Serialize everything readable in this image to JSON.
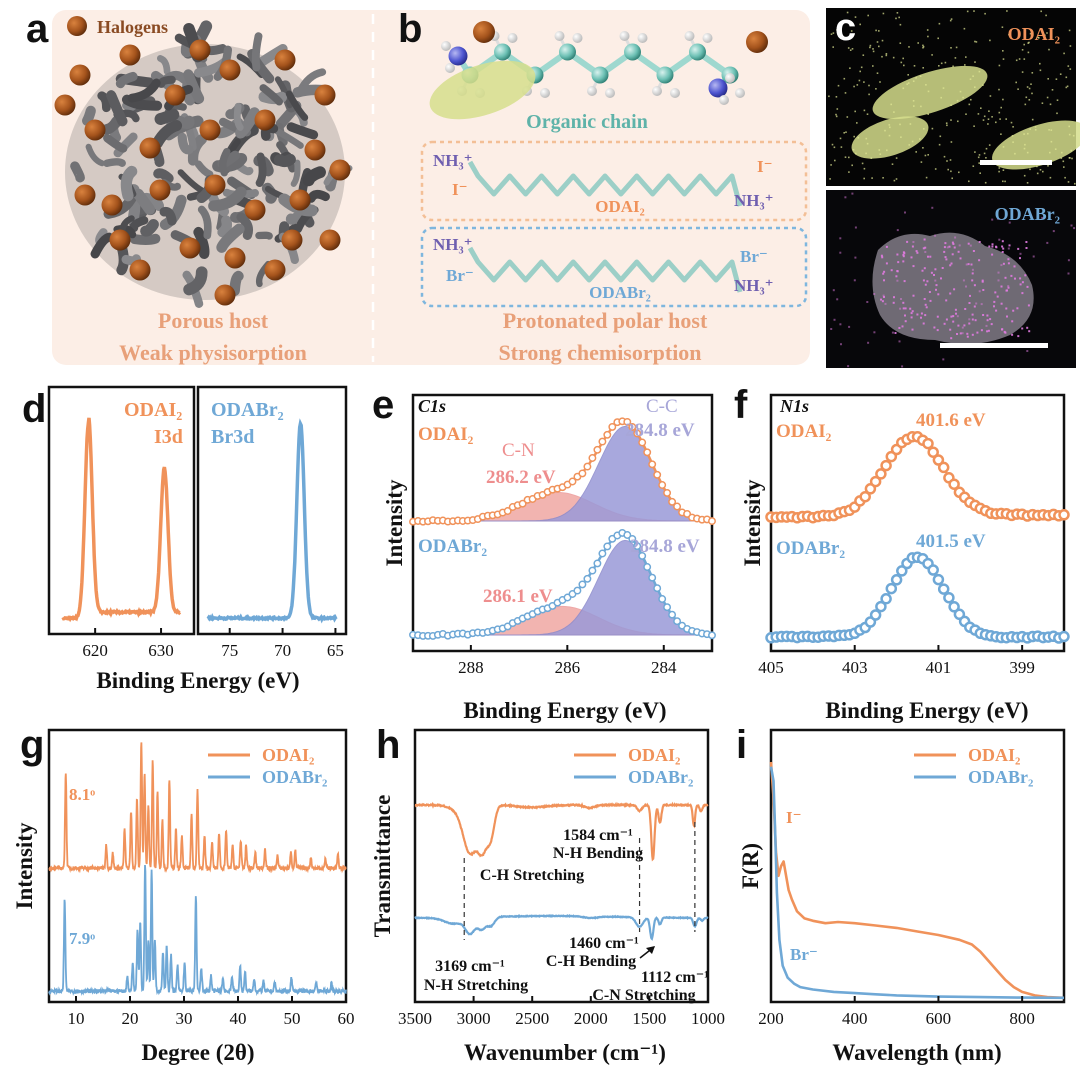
{
  "colors": {
    "orange": "#F0925A",
    "blue": "#6FA8D6",
    "purple": "#9A99D8",
    "pink": "#EE8E8E",
    "header_bg": "#FCEEE6",
    "chain_teal": "#5FB3A9",
    "text_orange": "#E8A079",
    "text_brown": "#8A4B23",
    "text_purple": "#6F5FB0"
  },
  "panel_labels": [
    "a",
    "b",
    "c",
    "d",
    "e",
    "f",
    "g",
    "h",
    "i"
  ],
  "panel_a": {
    "legend": "Halogens",
    "caption_line1": "Porous host",
    "caption_line2": "Weak physisorption"
  },
  "panel_b": {
    "organic_chain": "Organic chain",
    "box1": {
      "left_top": "NH₃⁺",
      "left_bottom": "I⁻",
      "center": "ODAI₂",
      "right_top": "I⁻",
      "right_bottom": "NH₃⁺"
    },
    "box2": {
      "left_top": "NH₃⁺",
      "left_bottom": "Br⁻",
      "center": "ODABr₂",
      "right_top": "Br⁻",
      "right_bottom": "NH₃⁺"
    },
    "caption_line1": "Protonated polar host",
    "caption_line2": "Strong chemisorption"
  },
  "panel_c": {
    "top_label": "ODAI₂",
    "bottom_label": "ODABr₂"
  },
  "chart_data": [
    {
      "panel": "d",
      "type": "line",
      "xlabel": "Binding Energy (eV)",
      "subplots": [
        {
          "name": "ODAI₂",
          "line2": "I3d",
          "color": "#F0925A",
          "xlim": [
            613,
            635
          ],
          "reversed": false,
          "ticks": [
            620,
            630
          ],
          "peaks": [
            {
              "x": 619.0,
              "h": 1.0,
              "w": 0.55
            },
            {
              "x": 630.5,
              "h": 0.74,
              "w": 0.55
            }
          ]
        },
        {
          "name": "ODABr₂",
          "line2": "Br3d",
          "color": "#6FA8D6",
          "xlim": [
            64,
            78
          ],
          "reversed": true,
          "ticks": [
            75,
            70,
            65
          ],
          "peaks": [
            {
              "x": 68.3,
              "h": 1.0,
              "w": 0.55
            }
          ]
        }
      ]
    },
    {
      "panel": "e",
      "type": "line",
      "header": "C1s",
      "xlabel": "Binding Energy (eV)",
      "ylabel": "Intensity",
      "xlim": [
        289.2,
        283.0
      ],
      "xticks": [
        288,
        286,
        284
      ],
      "series": [
        {
          "name": "ODAI₂",
          "color": "#F0925A",
          "components": [
            {
              "label": "C-N",
              "x": 286.2,
              "value_label": "286.2 eV",
              "h": 0.26,
              "w": 0.75
            },
            {
              "label": "C-C",
              "x": 284.8,
              "value_label": "284.8 eV",
              "h": 0.86,
              "w": 0.55
            }
          ]
        },
        {
          "name": "ODABr₂",
          "color": "#6FA8D6",
          "components": [
            {
              "label": "",
              "x": 286.1,
              "value_label": "286.1 eV",
              "h": 0.26,
              "w": 0.75
            },
            {
              "label": "",
              "x": 284.8,
              "value_label": "284.8 eV",
              "h": 0.86,
              "w": 0.55
            }
          ]
        }
      ]
    },
    {
      "panel": "f",
      "type": "line",
      "header": "N1s",
      "xlabel": "Binding Energy (eV)",
      "ylabel": "Intensity",
      "xlim": [
        405,
        398
      ],
      "xticks": [
        405,
        403,
        401,
        399
      ],
      "series": [
        {
          "name": "ODAI₂",
          "color": "#F0925A",
          "peak": 401.6,
          "value_label": "401.6 eV",
          "h": 0.95,
          "w": 0.7
        },
        {
          "name": "ODABr₂",
          "color": "#6FA8D6",
          "peak": 401.5,
          "value_label": "401.5 eV",
          "h": 0.95,
          "w": 0.62
        }
      ]
    },
    {
      "panel": "g",
      "type": "line",
      "xlabel": "Degree (2θ)",
      "ylabel": "Intensity",
      "xlim": [
        5,
        60
      ],
      "xticks": [
        10,
        20,
        30,
        40,
        50,
        60
      ],
      "xticklabels": [
        "10",
        "20",
        "30",
        "40",
        "50",
        "60"
      ],
      "series": [
        {
          "name": "ODAI₂",
          "color": "#F0925A",
          "annotation": "8.1ᵒ",
          "peaks": [
            [
              8.1,
              0.75
            ],
            [
              15.6,
              0.18
            ],
            [
              16.8,
              0.12
            ],
            [
              19.0,
              0.3
            ],
            [
              20.2,
              0.45
            ],
            [
              21.3,
              0.55
            ],
            [
              22.1,
              1.0
            ],
            [
              22.7,
              0.75
            ],
            [
              23.4,
              0.5
            ],
            [
              24.2,
              0.85
            ],
            [
              25.1,
              0.6
            ],
            [
              26.0,
              0.38
            ],
            [
              27.3,
              0.7
            ],
            [
              28.5,
              0.3
            ],
            [
              29.6,
              0.25
            ],
            [
              31.4,
              0.42
            ],
            [
              32.5,
              0.62
            ],
            [
              33.8,
              0.25
            ],
            [
              35.2,
              0.2
            ],
            [
              36.5,
              0.28
            ],
            [
              37.8,
              0.3
            ],
            [
              39.0,
              0.18
            ],
            [
              40.5,
              0.22
            ],
            [
              41.5,
              0.18
            ],
            [
              43.2,
              0.12
            ],
            [
              45.0,
              0.15
            ],
            [
              47.3,
              0.1
            ],
            [
              49.8,
              0.12
            ],
            [
              50.6,
              0.14
            ],
            [
              53.5,
              0.08
            ],
            [
              56.2,
              0.07
            ],
            [
              58.5,
              0.1
            ]
          ]
        },
        {
          "name": "ODABr₂",
          "color": "#6FA8D6",
          "annotation": "7.9ᵒ",
          "peaks": [
            [
              7.9,
              0.72
            ],
            [
              19.5,
              0.12
            ],
            [
              20.5,
              0.22
            ],
            [
              21.4,
              0.48
            ],
            [
              21.9,
              0.55
            ],
            [
              22.8,
              1.0
            ],
            [
              23.4,
              0.4
            ],
            [
              24.0,
              0.95
            ],
            [
              24.6,
              0.4
            ],
            [
              26.1,
              0.3
            ],
            [
              26.8,
              0.36
            ],
            [
              27.6,
              0.28
            ],
            [
              28.8,
              0.2
            ],
            [
              30.1,
              0.22
            ],
            [
              32.2,
              0.75
            ],
            [
              33.2,
              0.18
            ],
            [
              35.0,
              0.12
            ],
            [
              37.2,
              0.1
            ],
            [
              38.9,
              0.12
            ],
            [
              40.4,
              0.2
            ],
            [
              41.3,
              0.15
            ],
            [
              43.0,
              0.1
            ],
            [
              44.7,
              0.08
            ],
            [
              46.8,
              0.07
            ],
            [
              49.9,
              0.11
            ],
            [
              54.5,
              0.07
            ],
            [
              57.3,
              0.06
            ]
          ]
        }
      ]
    },
    {
      "panel": "h",
      "type": "line",
      "xlabel": "Wavenumber (cm⁻¹)",
      "ylabel": "Transmittance",
      "xlim": [
        3500,
        1000
      ],
      "xticks": [
        3500,
        3000,
        2500,
        2000,
        1500,
        1000
      ],
      "series": [
        {
          "name": "ODAI₂",
          "color": "#F0925A",
          "dips": [
            [
              3169,
              0.05,
              60
            ],
            [
              3030,
              0.8,
              60
            ],
            [
              2920,
              0.65,
              40
            ],
            [
              2850,
              0.45,
              30
            ],
            [
              2500,
              0.04,
              120
            ],
            [
              2010,
              0.05,
              40
            ],
            [
              1584,
              0.1,
              20
            ],
            [
              1470,
              0.9,
              14
            ],
            [
              1410,
              0.3,
              12
            ],
            [
              1120,
              0.35,
              10
            ],
            [
              1060,
              0.1,
              12
            ]
          ]
        },
        {
          "name": "ODABr₂",
          "color": "#6FA8D6",
          "dips": [
            [
              3169,
              0.18,
              80
            ],
            [
              3030,
              0.45,
              40
            ],
            [
              2930,
              0.35,
              35
            ],
            [
              2850,
              0.25,
              30
            ],
            [
              2000,
              0.05,
              60
            ],
            [
              1584,
              0.28,
              30
            ],
            [
              1480,
              0.62,
              14
            ],
            [
              1410,
              0.2,
              12
            ],
            [
              1112,
              0.25,
              14
            ],
            [
              1050,
              0.08,
              12
            ]
          ]
        }
      ],
      "annotations": [
        {
          "text_line1": "C-H Stretching",
          "text_line2": ""
        },
        {
          "text_line1": "1584 cm⁻¹",
          "text_line2": "N-H Bending"
        },
        {
          "text_line1": "3169 cm⁻¹",
          "text_line2": "N-H Stretching"
        },
        {
          "text_line1": "1460 cm⁻¹",
          "text_line2": "C-H Bending"
        },
        {
          "text_line1": "1112 cm⁻¹",
          "text_line2": "C-N Stretching"
        }
      ]
    },
    {
      "panel": "i",
      "type": "line",
      "xlabel": "Wavelength (nm)",
      "ylabel": "F(R)",
      "xlim": [
        200,
        900
      ],
      "xticks": [
        200,
        400,
        600,
        800
      ],
      "series": [
        {
          "name": "ODAI₂",
          "color": "#F0925A",
          "annotation": "I⁻",
          "points": [
            [
              200,
              1.0
            ],
            [
              206,
              0.85
            ],
            [
              212,
              0.62
            ],
            [
              218,
              0.52
            ],
            [
              224,
              0.56
            ],
            [
              230,
              0.58
            ],
            [
              236,
              0.52
            ],
            [
              242,
              0.46
            ],
            [
              250,
              0.42
            ],
            [
              262,
              0.37
            ],
            [
              280,
              0.34
            ],
            [
              300,
              0.33
            ],
            [
              330,
              0.32
            ],
            [
              360,
              0.325
            ],
            [
              400,
              0.32
            ],
            [
              450,
              0.31
            ],
            [
              500,
              0.3
            ],
            [
              550,
              0.285
            ],
            [
              600,
              0.27
            ],
            [
              650,
              0.25
            ],
            [
              680,
              0.23
            ],
            [
              700,
              0.2
            ],
            [
              720,
              0.16
            ],
            [
              740,
              0.12
            ],
            [
              760,
              0.08
            ],
            [
              780,
              0.05
            ],
            [
              800,
              0.03
            ],
            [
              830,
              0.015
            ],
            [
              860,
              0.008
            ],
            [
              900,
              0.005
            ]
          ]
        },
        {
          "name": "ODABr₂",
          "color": "#6FA8D6",
          "annotation": "Br⁻",
          "points": [
            [
              200,
              0.98
            ],
            [
              206,
              0.92
            ],
            [
              210,
              0.7
            ],
            [
              214,
              0.45
            ],
            [
              220,
              0.25
            ],
            [
              228,
              0.14
            ],
            [
              240,
              0.09
            ],
            [
              255,
              0.065
            ],
            [
              270,
              0.05
            ],
            [
              300,
              0.04
            ],
            [
              350,
              0.03
            ],
            [
              400,
              0.025
            ],
            [
              450,
              0.02
            ],
            [
              500,
              0.015
            ],
            [
              600,
              0.01
            ],
            [
              700,
              0.008
            ],
            [
              800,
              0.006
            ],
            [
              900,
              0.005
            ]
          ]
        }
      ]
    }
  ]
}
